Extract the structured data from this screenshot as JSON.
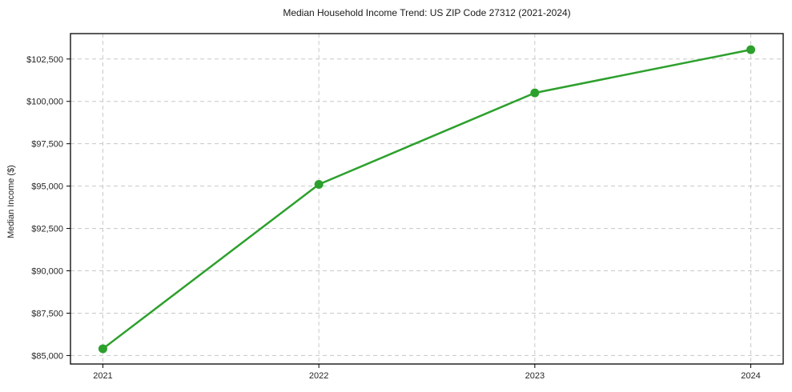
{
  "chart_data": {
    "type": "line",
    "title": "Median Household Income Trend: US ZIP Code 27312 (2021-2024)",
    "xlabel": "",
    "ylabel": "Median Income ($)",
    "categories": [
      "2021",
      "2022",
      "2023",
      "2024"
    ],
    "series": [
      {
        "name": "Median Household Income",
        "values": [
          85400,
          95100,
          100500,
          103050
        ]
      }
    ],
    "y_ticks": [
      85000,
      87500,
      90000,
      92500,
      95000,
      97500,
      100000,
      102500
    ],
    "y_tick_labels": [
      "$85,000",
      "$87,500",
      "$90,000",
      "$92,500",
      "$95,000",
      "$97,500",
      "$100,000",
      "$102,500"
    ],
    "ylim": [
      84500,
      104000
    ],
    "xlim": [
      -0.15,
      3.15
    ],
    "grid": "dashed",
    "legend": "none",
    "marker": "circle",
    "colors": {
      "line": "#2ca02c",
      "marker": "#2ca02c",
      "grid": "#c8c8c8",
      "axis": "#000000",
      "text": "#262626",
      "background": "#ffffff"
    }
  }
}
